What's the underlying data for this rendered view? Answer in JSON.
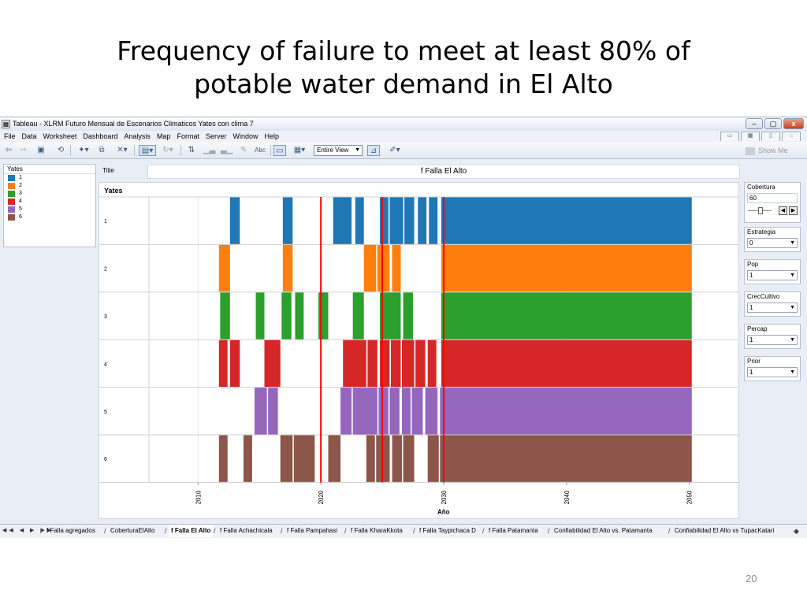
{
  "slide": {
    "title_line1": "Frequency of failure to meet at least 80% of",
    "title_line2": "potable water demand in El Alto",
    "page_number": "20"
  },
  "window": {
    "title": "Tableau - XLRM Futuro Mensual de Escenarios Climaticos Yates con clima 7",
    "minimize_label": "–",
    "restore_label": "▢",
    "close_label": "x"
  },
  "menu": [
    "File",
    "Data",
    "Worksheet",
    "Dashboard",
    "Analysis",
    "Map",
    "Format",
    "Server",
    "Window",
    "Help"
  ],
  "toolbar": {
    "view_select": "Entire View",
    "show_me": "Show Me",
    "text_button": "Abc"
  },
  "legend": {
    "title": "Yates",
    "items": [
      {
        "label": "1",
        "color": "#1f77b4"
      },
      {
        "label": "2",
        "color": "#ff7f0e"
      },
      {
        "label": "3",
        "color": "#2ca02c"
      },
      {
        "label": "4",
        "color": "#d62728"
      },
      {
        "label": "5",
        "color": "#9467bd"
      },
      {
        "label": "6",
        "color": "#8c564b"
      }
    ]
  },
  "worksheet": {
    "title_label": "Title",
    "title_value": "f Falla El Alto"
  },
  "chart_data": {
    "type": "bar",
    "row_header": "Yates",
    "xlabel": "Año",
    "xlim": [
      2006,
      2054
    ],
    "x_ticks": [
      2010,
      2020,
      2030,
      2040,
      2050
    ],
    "reference_lines": [
      2020,
      2025,
      2030
    ],
    "reference_line_color": "#ff0000",
    "rows": [
      {
        "label": "1",
        "color": "#1f77b4",
        "failure_intervals": [
          [
            2012.6,
            2013.4
          ],
          [
            2016.9,
            2017.7
          ],
          [
            2021.0,
            2022.5
          ],
          [
            2022.8,
            2023.5
          ],
          [
            2024.8,
            2025.5
          ],
          [
            2025.6,
            2026.7
          ],
          [
            2026.8,
            2027.6
          ],
          [
            2027.9,
            2028.6
          ],
          [
            2028.8,
            2029.5
          ],
          [
            2029.8,
            2050.2
          ]
        ]
      },
      {
        "label": "2",
        "color": "#ff7f0e",
        "failure_intervals": [
          [
            2011.7,
            2012.6
          ],
          [
            2016.9,
            2017.7
          ],
          [
            2023.5,
            2024.5
          ],
          [
            2024.6,
            2025.6
          ],
          [
            2025.8,
            2026.5
          ],
          [
            2029.8,
            2050.2
          ]
        ]
      },
      {
        "label": "3",
        "color": "#2ca02c",
        "failure_intervals": [
          [
            2011.8,
            2012.6
          ],
          [
            2014.7,
            2015.4
          ],
          [
            2016.8,
            2017.6
          ],
          [
            2017.9,
            2018.6
          ],
          [
            2019.8,
            2020.6
          ],
          [
            2022.6,
            2023.5
          ],
          [
            2024.8,
            2026.5
          ],
          [
            2026.7,
            2027.5
          ],
          [
            2029.8,
            2050.2
          ]
        ]
      },
      {
        "label": "4",
        "color": "#d62728",
        "failure_intervals": [
          [
            2011.7,
            2012.4
          ],
          [
            2012.6,
            2013.4
          ],
          [
            2015.4,
            2016.7
          ],
          [
            2021.8,
            2023.7
          ],
          [
            2023.8,
            2024.6
          ],
          [
            2024.8,
            2025.6
          ],
          [
            2025.7,
            2026.5
          ],
          [
            2026.6,
            2027.6
          ],
          [
            2027.7,
            2028.5
          ],
          [
            2028.7,
            2029.4
          ],
          [
            2029.8,
            2050.2
          ]
        ]
      },
      {
        "label": "5",
        "color": "#9467bd",
        "failure_intervals": [
          [
            2014.6,
            2015.6
          ],
          [
            2015.7,
            2016.5
          ],
          [
            2021.6,
            2022.5
          ],
          [
            2022.6,
            2024.6
          ],
          [
            2024.7,
            2025.5
          ],
          [
            2025.6,
            2026.4
          ],
          [
            2026.6,
            2027.3
          ],
          [
            2027.4,
            2028.3
          ],
          [
            2028.5,
            2029.5
          ],
          [
            2029.7,
            2050.2
          ]
        ]
      },
      {
        "label": "6",
        "color": "#8c564b",
        "failure_intervals": [
          [
            2011.7,
            2012.4
          ],
          [
            2013.7,
            2014.4
          ],
          [
            2016.7,
            2017.7
          ],
          [
            2017.8,
            2019.5
          ],
          [
            2020.6,
            2021.6
          ],
          [
            2023.7,
            2024.4
          ],
          [
            2024.5,
            2025.6
          ],
          [
            2025.8,
            2026.6
          ],
          [
            2026.7,
            2027.6
          ],
          [
            2028.7,
            2029.6
          ],
          [
            2029.7,
            2050.2
          ]
        ]
      }
    ]
  },
  "filters": {
    "cobertura": {
      "title": "Cobertura",
      "value": "60",
      "prev_label": "◀",
      "next_label": "▶"
    },
    "dropdowns": [
      {
        "title": "Estrategia",
        "value": "0"
      },
      {
        "title": "Pop",
        "value": "1"
      },
      {
        "title": "CrecCultivo",
        "value": "1"
      },
      {
        "title": "Percap",
        "value": "1"
      },
      {
        "title": "Prior",
        "value": "1"
      }
    ]
  },
  "sheet_tabs": {
    "nav": "◀◀ ◀ ▶ ▶▶",
    "tabs": [
      "f Falla agregados",
      "CoberturaElAlto",
      "f Falla El Alto",
      "f Falla Achachicala",
      "f Falla Pampahasi",
      "f Falla KharaKkota",
      "f Falla Taypichaca D",
      "f Falla Patamanta",
      "Confiabilidad El Alto vs. Patamanta",
      "Confiabilidad El Alto vs TupacKatari"
    ],
    "active_index": 2
  }
}
